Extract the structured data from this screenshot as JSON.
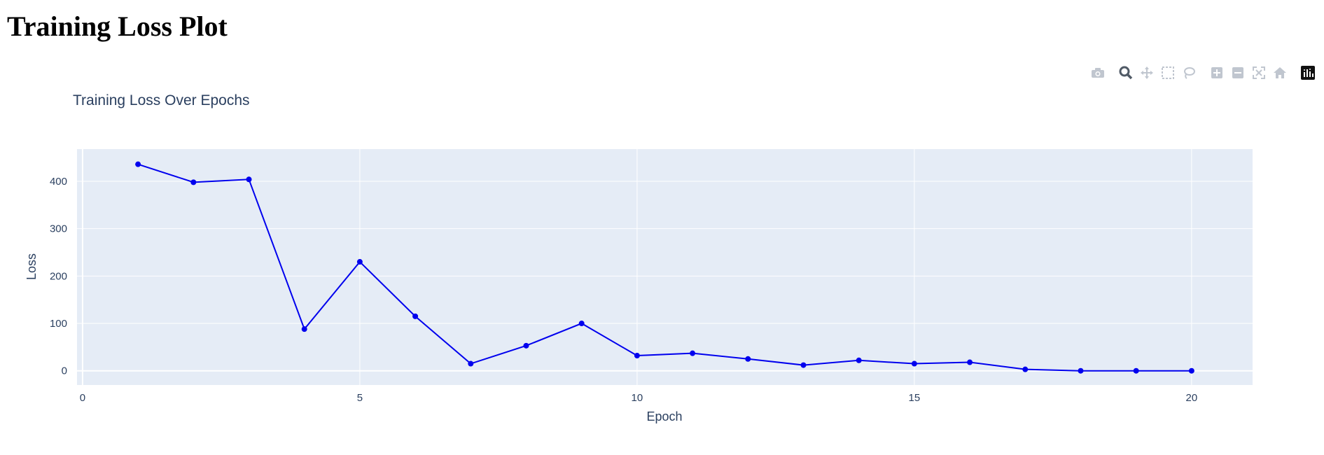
{
  "page": {
    "heading": "Training Loss Plot"
  },
  "modebar": {
    "icons": [
      "camera-icon",
      "zoom-icon",
      "pan-icon",
      "box-select-icon",
      "lasso-select-icon",
      "zoom-in-icon",
      "zoom-out-icon",
      "autoscale-icon",
      "reset-axes-icon",
      "plotly-logo-icon"
    ]
  },
  "chart_data": {
    "type": "line",
    "title": "Training Loss Over Epochs",
    "xlabel": "Epoch",
    "ylabel": "Loss",
    "xlim": [
      -0.1,
      21.1
    ],
    "ylim": [
      -30,
      468
    ],
    "xticks": [
      0,
      5,
      10,
      15,
      20
    ],
    "yticks": [
      0,
      100,
      200,
      300,
      400
    ],
    "grid": true,
    "line_color": "#0000ee",
    "plot_background": "#e5ecf6",
    "series": [
      {
        "x": [
          1,
          2,
          3,
          4,
          5,
          6,
          7,
          8,
          9,
          10,
          11,
          12,
          13,
          14,
          15,
          16,
          17,
          18,
          19,
          20
        ],
        "y": [
          436,
          398,
          404,
          88,
          230,
          115,
          15,
          53,
          100,
          32,
          37,
          25,
          12,
          22,
          15,
          18,
          3,
          0,
          0,
          0
        ]
      }
    ]
  }
}
